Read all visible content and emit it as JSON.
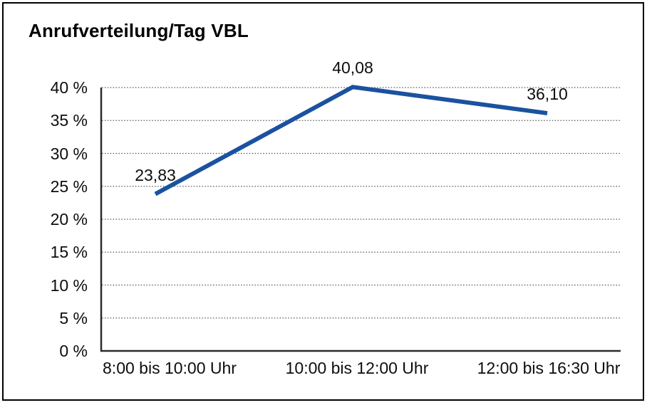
{
  "chart_data": {
    "type": "line",
    "title": "Anrufverteilung/Tag VBL",
    "categories": [
      "8:00 bis 10:00 Uhr",
      "10:00 bis 12:00 Uhr",
      "12:00 bis 16:30 Uhr"
    ],
    "values": [
      23.83,
      40.08,
      36.1
    ],
    "point_labels": [
      "23,83",
      "40,08",
      "36,10"
    ],
    "y_tick_values": [
      0,
      5,
      10,
      15,
      20,
      25,
      30,
      35,
      40
    ],
    "y_tick_labels": [
      "0 %",
      "5 %",
      "10 %",
      "15 %",
      "20 %",
      "25 %",
      "30 %",
      "35 %",
      "40 %"
    ],
    "xlabel": "",
    "ylabel": "",
    "ylim": [
      0,
      40
    ],
    "grid": "horizontal dotted",
    "legend": "none",
    "colors": {
      "line": "#1A529F",
      "axis": "#2b2b2b",
      "gridline": "#555555",
      "text": "#0d0d0d",
      "frame_border": "#000000",
      "background": "#ffffff"
    }
  }
}
